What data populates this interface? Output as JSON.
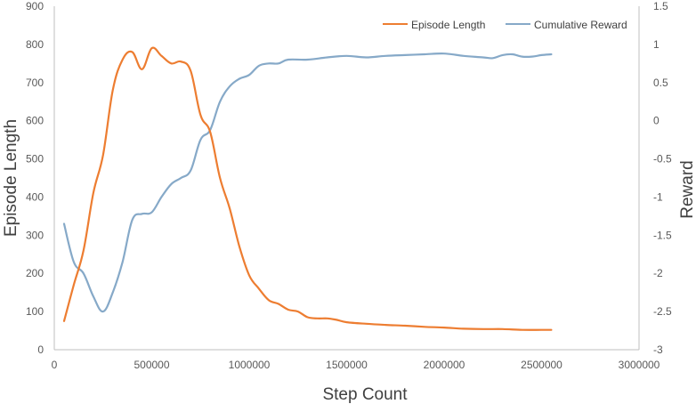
{
  "chart_data": {
    "type": "line",
    "title": "",
    "xlabel": "Step Count",
    "ylabel_left": "Episode Length",
    "ylabel_right": "Reward",
    "grid": false,
    "legend_position": "top-right",
    "x_ticks": [
      "0",
      "500000",
      "1000000",
      "1500000",
      "2000000",
      "2500000",
      "3000000"
    ],
    "x_range": [
      0,
      3000000
    ],
    "y_left_ticks": [
      "0",
      "100",
      "200",
      "300",
      "400",
      "500",
      "600",
      "700",
      "800",
      "900"
    ],
    "y_left_range": [
      0,
      900
    ],
    "y_right_ticks": [
      "-3",
      "-2.5",
      "-2",
      "-1.5",
      "-1",
      "-0.5",
      "0",
      "0.5",
      "1",
      "1.5"
    ],
    "y_right_range": [
      -3,
      1.5
    ],
    "series": [
      {
        "name": "Episode Length",
        "axis": "left",
        "color": "#ED7D31",
        "x": [
          50000,
          100000,
          150000,
          200000,
          250000,
          300000,
          350000,
          400000,
          450000,
          500000,
          550000,
          600000,
          650000,
          700000,
          750000,
          800000,
          850000,
          900000,
          950000,
          1000000,
          1050000,
          1100000,
          1150000,
          1200000,
          1250000,
          1300000,
          1350000,
          1400000,
          1450000,
          1500000,
          1600000,
          1700000,
          1800000,
          1900000,
          2000000,
          2100000,
          2200000,
          2300000,
          2400000,
          2500000,
          2550000
        ],
        "y": [
          75,
          170,
          260,
          410,
          510,
          680,
          760,
          780,
          735,
          790,
          770,
          750,
          755,
          730,
          615,
          570,
          450,
          370,
          270,
          195,
          160,
          130,
          120,
          105,
          100,
          85,
          82,
          82,
          78,
          72,
          68,
          65,
          63,
          60,
          58,
          55,
          54,
          54,
          52,
          52,
          52
        ]
      },
      {
        "name": "Cumulative Reward",
        "axis": "right",
        "color": "#86A9C8",
        "x": [
          50000,
          100000,
          150000,
          200000,
          250000,
          300000,
          350000,
          400000,
          450000,
          500000,
          550000,
          600000,
          650000,
          700000,
          750000,
          800000,
          850000,
          900000,
          950000,
          1000000,
          1050000,
          1100000,
          1150000,
          1200000,
          1300000,
          1400000,
          1500000,
          1600000,
          1700000,
          1800000,
          1900000,
          2000000,
          2100000,
          2200000,
          2250000,
          2300000,
          2350000,
          2400000,
          2450000,
          2500000,
          2550000
        ],
        "y": [
          -1.35,
          -1.85,
          -2.0,
          -2.3,
          -2.5,
          -2.25,
          -1.85,
          -1.3,
          -1.22,
          -1.2,
          -1.0,
          -0.83,
          -0.75,
          -0.65,
          -0.25,
          -0.12,
          0.25,
          0.45,
          0.55,
          0.6,
          0.72,
          0.75,
          0.75,
          0.8,
          0.8,
          0.83,
          0.85,
          0.83,
          0.85,
          0.86,
          0.87,
          0.88,
          0.85,
          0.83,
          0.82,
          0.86,
          0.87,
          0.84,
          0.84,
          0.86,
          0.87
        ]
      }
    ]
  }
}
